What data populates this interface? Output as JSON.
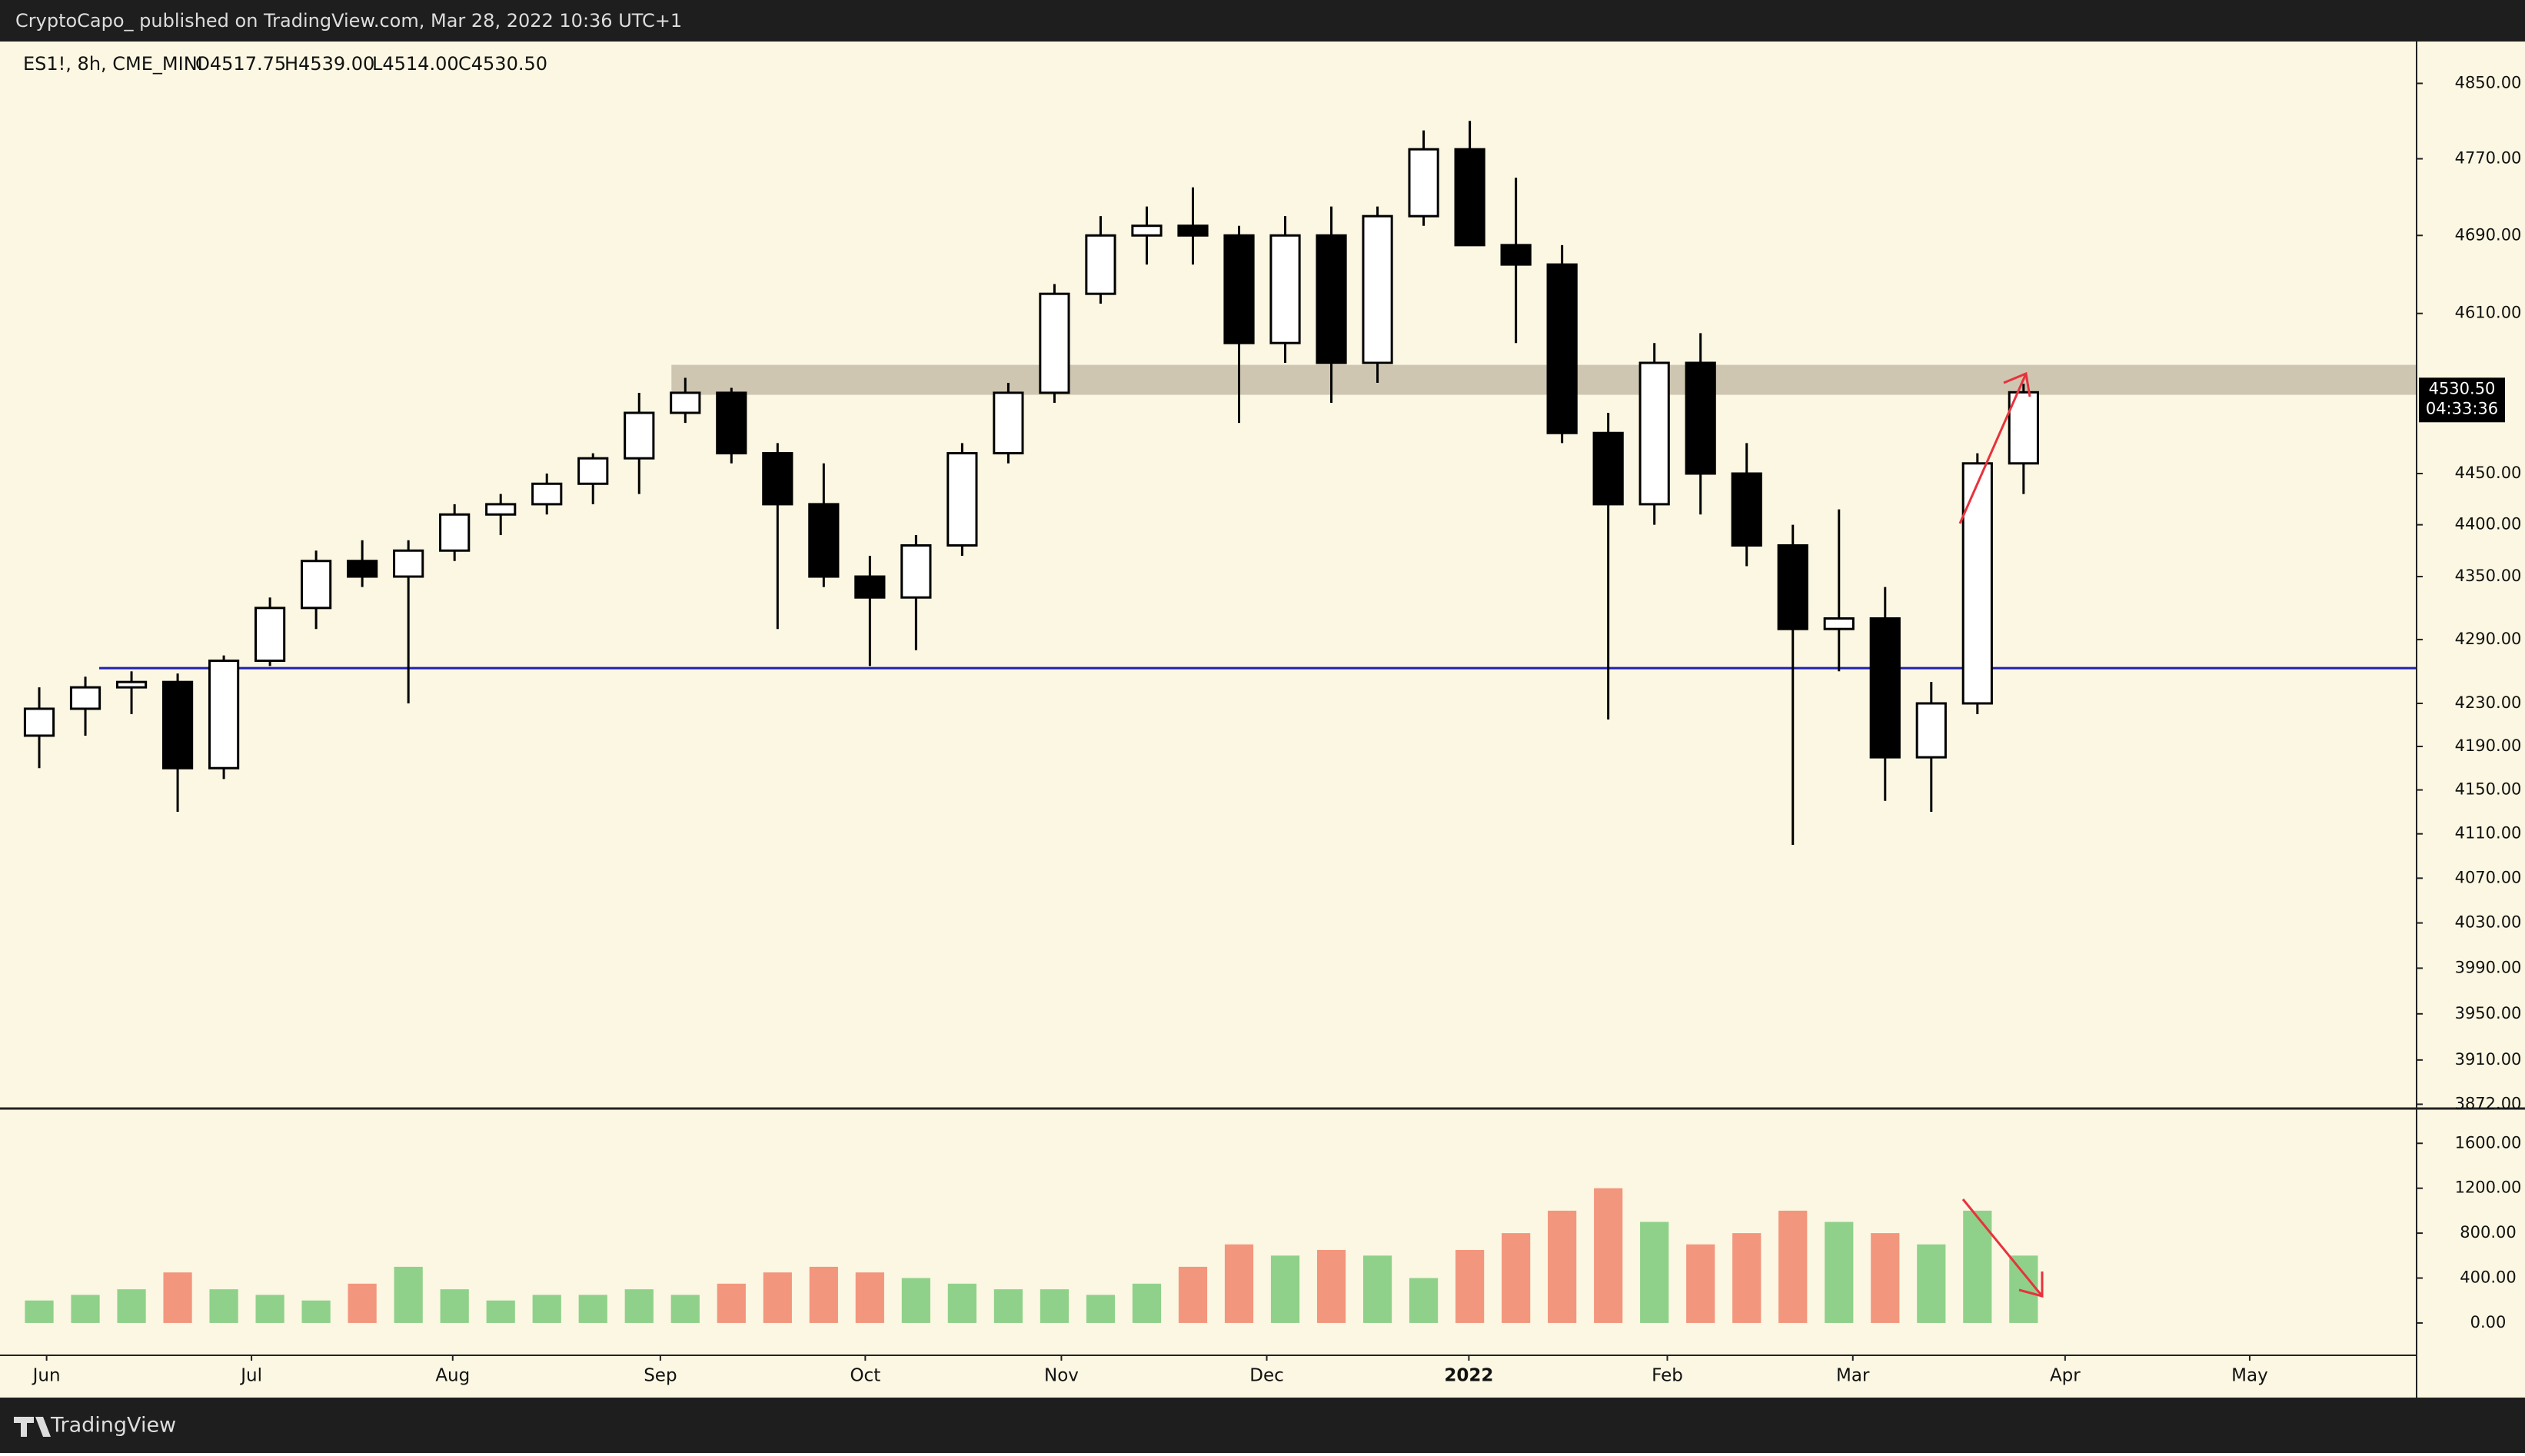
{
  "header": {
    "publisher": "CryptoCapo_  published on TradingView.com, Mar 28, 2022 10:36 UTC+1"
  },
  "footer": {
    "brand": "TradingView"
  },
  "chart_data": {
    "type": "candlestick",
    "title": "ES1!, 8h, CME_MINI",
    "last_bar": [
      "O4517.75",
      "H4539.00",
      "L4514.00",
      "C4530.50"
    ],
    "log_scale": true,
    "ylim": [
      3869,
      4895
    ],
    "yticks": [
      {
        "value": 4850,
        "label": "4850.00"
      },
      {
        "value": 4770,
        "label": "4770.00"
      },
      {
        "value": 4690,
        "label": "4690.00"
      },
      {
        "value": 4610,
        "label": "4610.00"
      },
      {
        "value": 4450,
        "label": "4450.00"
      },
      {
        "value": 4400,
        "label": "4400.00"
      },
      {
        "value": 4350,
        "label": "4350.00"
      },
      {
        "value": 4290,
        "label": "4290.00"
      },
      {
        "value": 4230,
        "label": "4230.00"
      },
      {
        "value": 4190,
        "label": "4190.00"
      },
      {
        "value": 4150,
        "label": "4150.00"
      },
      {
        "value": 4110,
        "label": "4110.00"
      },
      {
        "value": 4070,
        "label": "4070.00"
      },
      {
        "value": 4030,
        "label": "4030.00"
      },
      {
        "value": 3990,
        "label": "3990.00"
      },
      {
        "value": 3950,
        "label": "3950.00"
      },
      {
        "value": 3910,
        "label": "3910.00"
      },
      {
        "value": 3872,
        "label": "3872.00"
      }
    ],
    "xlim": [
      -0.5,
      51.5
    ],
    "xticks": [
      {
        "value": 0.16,
        "label": "Jun"
      },
      {
        "value": 4.6,
        "label": "Jul"
      },
      {
        "value": 8.96,
        "label": "Aug"
      },
      {
        "value": 13.46,
        "label": "Sep"
      },
      {
        "value": 17.9,
        "label": "Oct"
      },
      {
        "value": 22.15,
        "label": "Nov"
      },
      {
        "value": 26.6,
        "label": "Dec"
      },
      {
        "value": 30.98,
        "label": "2022"
      },
      {
        "value": 35.28,
        "label": "Feb"
      },
      {
        "value": 39.3,
        "label": "Mar"
      },
      {
        "value": 43.9,
        "label": "Apr"
      },
      {
        "value": 47.9,
        "label": "May"
      }
    ],
    "open": [
      4200,
      4225,
      4245,
      4250,
      4170,
      4270,
      4320,
      4365,
      4350,
      4375,
      4410,
      4420,
      4440,
      4465,
      4510,
      4530,
      4470,
      4420,
      4350,
      4330,
      4380,
      4470,
      4530,
      4630,
      4690,
      4700,
      4690,
      4580,
      4690,
      4560,
      4710,
      4780,
      4680,
      4660,
      4490,
      4420,
      4560,
      4450,
      4380,
      4300,
      4310,
      4180,
      4230,
      4460
    ],
    "high": [
      4245,
      4255,
      4260,
      4258,
      4275,
      4330,
      4375,
      4385,
      4385,
      4420,
      4430,
      4450,
      4470,
      4530,
      4545,
      4535,
      4480,
      4460,
      4370,
      4390,
      4480,
      4540,
      4640,
      4710,
      4720,
      4740,
      4700,
      4710,
      4720,
      4720,
      4800,
      4810,
      4750,
      4680,
      4510,
      4580,
      4590,
      4480,
      4400,
      4415,
      4340,
      4250,
      4470,
      4539
    ],
    "low": [
      4170,
      4200,
      4220,
      4130,
      4160,
      4265,
      4300,
      4340,
      4230,
      4365,
      4390,
      4410,
      4420,
      4430,
      4500,
      4460,
      4300,
      4340,
      4265,
      4280,
      4370,
      4460,
      4520,
      4620,
      4660,
      4660,
      4500,
      4560,
      4520,
      4540,
      4700,
      4680,
      4580,
      4480,
      4215,
      4400,
      4410,
      4360,
      4100,
      4260,
      4140,
      4130,
      4220,
      4430
    ],
    "close": [
      4225,
      4245,
      4250,
      4170,
      4270,
      4320,
      4365,
      4350,
      4375,
      4410,
      4420,
      4440,
      4465,
      4510,
      4530,
      4470,
      4420,
      4350,
      4330,
      4380,
      4470,
      4530,
      4630,
      4690,
      4700,
      4690,
      4580,
      4690,
      4560,
      4710,
      4780,
      4680,
      4660,
      4490,
      4420,
      4560,
      4450,
      4380,
      4300,
      4310,
      4180,
      4230,
      4460,
      4530.5
    ],
    "up_color": "#ffffff",
    "down_color": "#000000",
    "price_label": {
      "value": 4530.5,
      "label": "4530.50"
    },
    "countdown": "04:33:36",
    "levels": [
      {
        "value": 4263,
        "color": "#1f1fb4",
        "start": 1.3
      }
    ],
    "zones": [
      {
        "low": 4528,
        "high": 4558,
        "color": "#c9c0ac",
        "start": 13.7
      }
    ],
    "volume": {
      "ylim": [
        -288,
        1903
      ],
      "yticks": [
        {
          "value": 0,
          "label": "0.00"
        },
        {
          "value": 400,
          "label": "400.00"
        },
        {
          "value": 800,
          "label": "800.00"
        },
        {
          "value": 1200,
          "label": "1200.00"
        },
        {
          "value": 1600,
          "label": "1600.00"
        }
      ],
      "values": [
        200,
        250,
        300,
        450,
        300,
        250,
        200,
        350,
        500,
        300,
        200,
        250,
        250,
        300,
        250,
        350,
        450,
        500,
        450,
        400,
        350,
        300,
        300,
        250,
        350,
        500,
        700,
        600,
        650,
        600,
        400,
        650,
        800,
        1000,
        1200,
        900,
        700,
        800,
        1000,
        900,
        800,
        700,
        1000,
        600
      ],
      "up_color": "#8fd18a",
      "down_color": "#f3967e"
    }
  }
}
